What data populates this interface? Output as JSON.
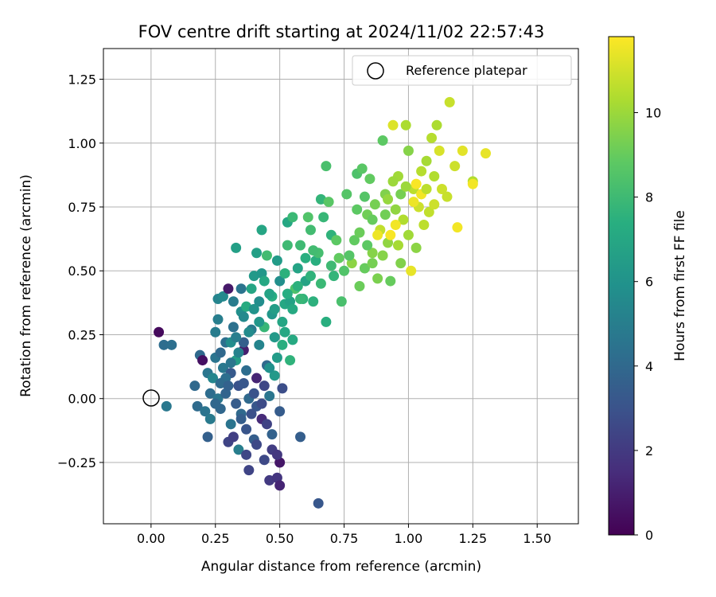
{
  "chart_data": {
    "type": "scatter",
    "title": "FOV centre drift starting at 2024/11/02 22:57:43",
    "xlabel": "Angular distance from reference (arcmin)",
    "ylabel": "Rotation from reference (arcmin)",
    "xlim": [
      -0.185,
      1.66
    ],
    "ylim": [
      -0.49,
      1.37
    ],
    "xticks": [
      "0.00",
      "0.25",
      "0.50",
      "0.75",
      "1.00",
      "1.25",
      "1.50"
    ],
    "yticks": [
      "−0.25",
      "0.00",
      "0.25",
      "0.50",
      "0.75",
      "1.00",
      "1.25"
    ],
    "grid": true,
    "legend": {
      "placement": "top-right",
      "label": "Reference platepar"
    },
    "colorbar": {
      "label": "Hours from first FF file",
      "range": [
        0,
        11.8
      ],
      "ticks": [
        "0",
        "2",
        "4",
        "6",
        "8",
        "10"
      ],
      "colormap": "viridis"
    },
    "reference_point": {
      "x": 0.0,
      "y": 0.0
    },
    "points": [
      {
        "x": 0.03,
        "y": 0.26,
        "c": 0.3
      },
      {
        "x": 0.05,
        "y": 0.21,
        "c": 4.2
      },
      {
        "x": 0.08,
        "y": 0.21,
        "c": 4.3
      },
      {
        "x": 0.06,
        "y": -0.03,
        "c": 4.7
      },
      {
        "x": 0.17,
        "y": 0.05,
        "c": 4.0
      },
      {
        "x": 0.18,
        "y": -0.03,
        "c": 4.1
      },
      {
        "x": 0.19,
        "y": 0.17,
        "c": 4.0
      },
      {
        "x": 0.2,
        "y": 0.15,
        "c": 0.5
      },
      {
        "x": 0.21,
        "y": -0.05,
        "c": 4.5
      },
      {
        "x": 0.22,
        "y": 0.1,
        "c": 4.6
      },
      {
        "x": 0.22,
        "y": -0.15,
        "c": 3.6
      },
      {
        "x": 0.23,
        "y": 0.02,
        "c": 4.2
      },
      {
        "x": 0.23,
        "y": -0.08,
        "c": 4.8
      },
      {
        "x": 0.24,
        "y": 0.08,
        "c": 5.4
      },
      {
        "x": 0.25,
        "y": 0.16,
        "c": 4.5
      },
      {
        "x": 0.25,
        "y": 0.26,
        "c": 4.9
      },
      {
        "x": 0.26,
        "y": 0.39,
        "c": 5.3
      },
      {
        "x": 0.26,
        "y": 0.31,
        "c": 5.0
      },
      {
        "x": 0.26,
        "y": 0.0,
        "c": 4.6
      },
      {
        "x": 0.27,
        "y": 0.18,
        "c": 4.0
      },
      {
        "x": 0.27,
        "y": -0.04,
        "c": 3.9
      },
      {
        "x": 0.28,
        "y": 0.12,
        "c": 4.7
      },
      {
        "x": 0.28,
        "y": 0.4,
        "c": 5.5
      },
      {
        "x": 0.29,
        "y": 0.22,
        "c": 4.3
      },
      {
        "x": 0.29,
        "y": 0.02,
        "c": 3.8
      },
      {
        "x": 0.3,
        "y": 0.43,
        "c": 0.8
      },
      {
        "x": 0.3,
        "y": -0.17,
        "c": 2.4
      },
      {
        "x": 0.31,
        "y": 0.1,
        "c": 3.3
      },
      {
        "x": 0.31,
        "y": -0.1,
        "c": 4.5
      },
      {
        "x": 0.31,
        "y": 0.22,
        "c": 5.7
      },
      {
        "x": 0.32,
        "y": 0.38,
        "c": 4.9
      },
      {
        "x": 0.32,
        "y": -0.15,
        "c": 2.2
      },
      {
        "x": 0.32,
        "y": 0.28,
        "c": 4.4
      },
      {
        "x": 0.33,
        "y": 0.59,
        "c": 6.6
      },
      {
        "x": 0.33,
        "y": 0.15,
        "c": 6.5
      },
      {
        "x": 0.34,
        "y": 0.05,
        "c": 3.0
      },
      {
        "x": 0.34,
        "y": -0.2,
        "c": 5.0
      },
      {
        "x": 0.35,
        "y": 0.43,
        "c": 4.5
      },
      {
        "x": 0.35,
        "y": 0.34,
        "c": 5.8
      },
      {
        "x": 0.35,
        "y": -0.06,
        "c": 4.0
      },
      {
        "x": 0.36,
        "y": 0.19,
        "c": 1.0
      },
      {
        "x": 0.36,
        "y": 0.22,
        "c": 3.6
      },
      {
        "x": 0.37,
        "y": -0.22,
        "c": 2.5
      },
      {
        "x": 0.37,
        "y": 0.36,
        "c": 7.2
      },
      {
        "x": 0.37,
        "y": 0.11,
        "c": 4.2
      },
      {
        "x": 0.38,
        "y": 0.0,
        "c": 4.0
      },
      {
        "x": 0.38,
        "y": -0.28,
        "c": 2.4
      },
      {
        "x": 0.39,
        "y": 0.43,
        "c": 6.9
      },
      {
        "x": 0.39,
        "y": 0.27,
        "c": 4.8
      },
      {
        "x": 0.4,
        "y": 0.48,
        "c": 6.3
      },
      {
        "x": 0.4,
        "y": -0.16,
        "c": 3.5
      },
      {
        "x": 0.41,
        "y": 0.57,
        "c": 6.6
      },
      {
        "x": 0.41,
        "y": 0.08,
        "c": 1.2
      },
      {
        "x": 0.41,
        "y": -0.03,
        "c": 3.2
      },
      {
        "x": 0.42,
        "y": 0.38,
        "c": 5.7
      },
      {
        "x": 0.42,
        "y": 0.21,
        "c": 5.3
      },
      {
        "x": 0.43,
        "y": 0.66,
        "c": 6.9
      },
      {
        "x": 0.43,
        "y": -0.08,
        "c": 1.4
      },
      {
        "x": 0.43,
        "y": 0.49,
        "c": 6.2
      },
      {
        "x": 0.44,
        "y": 0.28,
        "c": 7.8
      },
      {
        "x": 0.44,
        "y": -0.24,
        "c": 2.6
      },
      {
        "x": 0.45,
        "y": 0.13,
        "c": 4.0
      },
      {
        "x": 0.45,
        "y": 0.56,
        "c": 8.1
      },
      {
        "x": 0.46,
        "y": 0.01,
        "c": 4.6
      },
      {
        "x": 0.46,
        "y": -0.32,
        "c": 2.0
      },
      {
        "x": 0.47,
        "y": 0.33,
        "c": 6.2
      },
      {
        "x": 0.47,
        "y": 0.4,
        "c": 7.3
      },
      {
        "x": 0.47,
        "y": -0.14,
        "c": 3.7
      },
      {
        "x": 0.48,
        "y": 0.09,
        "c": 6.3
      },
      {
        "x": 0.48,
        "y": 0.24,
        "c": 6.3
      },
      {
        "x": 0.49,
        "y": -0.31,
        "c": 1.8
      },
      {
        "x": 0.49,
        "y": 0.54,
        "c": 6.4
      },
      {
        "x": 0.5,
        "y": 0.46,
        "c": 5.8
      },
      {
        "x": 0.5,
        "y": -0.05,
        "c": 3.4
      },
      {
        "x": 0.5,
        "y": -0.34,
        "c": 1.2
      },
      {
        "x": 0.5,
        "y": -0.25,
        "c": 0.7
      },
      {
        "x": 0.51,
        "y": 0.21,
        "c": 7.4
      },
      {
        "x": 0.51,
        "y": 0.04,
        "c": 2.8
      },
      {
        "x": 0.52,
        "y": 0.37,
        "c": 7.0
      },
      {
        "x": 0.52,
        "y": 0.49,
        "c": 7.5
      },
      {
        "x": 0.53,
        "y": 0.6,
        "c": 8.0
      },
      {
        "x": 0.53,
        "y": 0.69,
        "c": 7.0
      },
      {
        "x": 0.54,
        "y": 0.38,
        "c": 6.7
      },
      {
        "x": 0.54,
        "y": 0.15,
        "c": 7.6
      },
      {
        "x": 0.55,
        "y": 0.71,
        "c": 7.9
      },
      {
        "x": 0.55,
        "y": 0.23,
        "c": 7.1
      },
      {
        "x": 0.56,
        "y": 0.43,
        "c": 8.4
      },
      {
        "x": 0.57,
        "y": 0.51,
        "c": 6.8
      },
      {
        "x": 0.58,
        "y": 0.6,
        "c": 8.0
      },
      {
        "x": 0.58,
        "y": -0.15,
        "c": 3.5
      },
      {
        "x": 0.59,
        "y": 0.39,
        "c": 7.6
      },
      {
        "x": 0.6,
        "y": 0.46,
        "c": 6.8
      },
      {
        "x": 0.61,
        "y": 0.71,
        "c": 8.5
      },
      {
        "x": 0.62,
        "y": 0.66,
        "c": 8.1
      },
      {
        "x": 0.63,
        "y": 0.38,
        "c": 7.5
      },
      {
        "x": 0.64,
        "y": 0.54,
        "c": 7.4
      },
      {
        "x": 0.65,
        "y": 0.57,
        "c": 8.2
      },
      {
        "x": 0.65,
        "y": -0.41,
        "c": 3.2
      },
      {
        "x": 0.66,
        "y": 0.78,
        "c": 7.7
      },
      {
        "x": 0.67,
        "y": 0.71,
        "c": 7.8
      },
      {
        "x": 0.68,
        "y": 0.91,
        "c": 8.3
      },
      {
        "x": 0.68,
        "y": 0.3,
        "c": 7.4
      },
      {
        "x": 0.69,
        "y": 0.77,
        "c": 8.7
      },
      {
        "x": 0.7,
        "y": 0.64,
        "c": 7.6
      },
      {
        "x": 0.71,
        "y": 0.48,
        "c": 7.7
      },
      {
        "x": 0.72,
        "y": 0.62,
        "c": 8.8
      },
      {
        "x": 0.73,
        "y": 0.55,
        "c": 8.9
      },
      {
        "x": 0.74,
        "y": 0.38,
        "c": 8.3
      },
      {
        "x": 0.76,
        "y": 0.8,
        "c": 8.6
      },
      {
        "x": 0.78,
        "y": 0.53,
        "c": 9.7
      },
      {
        "x": 0.79,
        "y": 0.62,
        "c": 8.9
      },
      {
        "x": 0.8,
        "y": 0.88,
        "c": 8.4
      },
      {
        "x": 0.81,
        "y": 0.65,
        "c": 9.1
      },
      {
        "x": 0.82,
        "y": 0.9,
        "c": 8.7
      },
      {
        "x": 0.83,
        "y": 0.51,
        "c": 9.0
      },
      {
        "x": 0.84,
        "y": 0.72,
        "c": 9.2
      },
      {
        "x": 0.85,
        "y": 0.86,
        "c": 8.9
      },
      {
        "x": 0.86,
        "y": 0.57,
        "c": 9.6
      },
      {
        "x": 0.87,
        "y": 0.76,
        "c": 9.3
      },
      {
        "x": 0.88,
        "y": 0.47,
        "c": 9.4
      },
      {
        "x": 0.89,
        "y": 0.66,
        "c": 10.7
      },
      {
        "x": 0.9,
        "y": 1.01,
        "c": 8.8
      },
      {
        "x": 0.91,
        "y": 0.8,
        "c": 9.5
      },
      {
        "x": 0.92,
        "y": 0.61,
        "c": 9.8
      },
      {
        "x": 0.93,
        "y": 0.46,
        "c": 9.0
      },
      {
        "x": 0.94,
        "y": 1.07,
        "c": 11.2
      },
      {
        "x": 0.95,
        "y": 0.74,
        "c": 9.8
      },
      {
        "x": 0.96,
        "y": 0.87,
        "c": 10.1
      },
      {
        "x": 0.97,
        "y": 0.53,
        "c": 9.5
      },
      {
        "x": 0.98,
        "y": 0.7,
        "c": 10.4
      },
      {
        "x": 0.99,
        "y": 1.07,
        "c": 10.3
      },
      {
        "x": 1.0,
        "y": 0.97,
        "c": 9.6
      },
      {
        "x": 1.01,
        "y": 0.5,
        "c": 11.4
      },
      {
        "x": 1.02,
        "y": 0.82,
        "c": 10.6
      },
      {
        "x": 1.03,
        "y": 0.59,
        "c": 9.7
      },
      {
        "x": 1.04,
        "y": 0.75,
        "c": 10.9
      },
      {
        "x": 1.05,
        "y": 0.89,
        "c": 10.5
      },
      {
        "x": 1.06,
        "y": 0.68,
        "c": 10.6
      },
      {
        "x": 1.07,
        "y": 0.93,
        "c": 10.2
      },
      {
        "x": 1.08,
        "y": 0.73,
        "c": 10.7
      },
      {
        "x": 1.09,
        "y": 1.02,
        "c": 10.5
      },
      {
        "x": 1.1,
        "y": 0.87,
        "c": 10.4
      },
      {
        "x": 1.11,
        "y": 1.07,
        "c": 10.3
      },
      {
        "x": 1.12,
        "y": 0.97,
        "c": 11.1
      },
      {
        "x": 1.13,
        "y": 0.82,
        "c": 10.9
      },
      {
        "x": 1.15,
        "y": 0.79,
        "c": 10.8
      },
      {
        "x": 1.16,
        "y": 1.16,
        "c": 10.8
      },
      {
        "x": 1.18,
        "y": 0.91,
        "c": 10.9
      },
      {
        "x": 1.19,
        "y": 0.67,
        "c": 11.6
      },
      {
        "x": 1.21,
        "y": 0.97,
        "c": 11.3
      },
      {
        "x": 1.25,
        "y": 0.85,
        "c": 10.4
      },
      {
        "x": 1.25,
        "y": 0.84,
        "c": 11.6
      },
      {
        "x": 1.3,
        "y": 0.96,
        "c": 11.4
      },
      {
        "x": 0.93,
        "y": 0.64,
        "c": 11.7
      },
      {
        "x": 0.95,
        "y": 0.68,
        "c": 11.6
      },
      {
        "x": 0.88,
        "y": 0.64,
        "c": 11.5
      },
      {
        "x": 1.03,
        "y": 0.84,
        "c": 11.7
      },
      {
        "x": 1.05,
        "y": 0.8,
        "c": 11.6
      },
      {
        "x": 1.02,
        "y": 0.77,
        "c": 11.5
      },
      {
        "x": 0.97,
        "y": 0.8,
        "c": 9.3
      },
      {
        "x": 0.99,
        "y": 0.83,
        "c": 10.0
      },
      {
        "x": 0.91,
        "y": 0.72,
        "c": 9.2
      },
      {
        "x": 0.84,
        "y": 0.6,
        "c": 8.8
      },
      {
        "x": 0.86,
        "y": 0.7,
        "c": 9.0
      },
      {
        "x": 0.83,
        "y": 0.79,
        "c": 8.6
      },
      {
        "x": 0.92,
        "y": 0.78,
        "c": 9.9
      },
      {
        "x": 0.96,
        "y": 0.6,
        "c": 10.2
      },
      {
        "x": 0.81,
        "y": 0.44,
        "c": 9.1
      },
      {
        "x": 0.75,
        "y": 0.5,
        "c": 8.5
      },
      {
        "x": 0.77,
        "y": 0.56,
        "c": 8.6
      },
      {
        "x": 0.7,
        "y": 0.52,
        "c": 8.0
      },
      {
        "x": 0.66,
        "y": 0.45,
        "c": 7.9
      },
      {
        "x": 0.62,
        "y": 0.48,
        "c": 7.6
      },
      {
        "x": 0.6,
        "y": 0.55,
        "c": 7.4
      },
      {
        "x": 0.57,
        "y": 0.44,
        "c": 7.5
      },
      {
        "x": 0.55,
        "y": 0.35,
        "c": 7.1
      },
      {
        "x": 0.53,
        "y": 0.41,
        "c": 7.3
      },
      {
        "x": 0.51,
        "y": 0.3,
        "c": 6.9
      },
      {
        "x": 0.48,
        "y": 0.35,
        "c": 6.5
      },
      {
        "x": 0.46,
        "y": 0.41,
        "c": 6.8
      },
      {
        "x": 0.44,
        "y": 0.46,
        "c": 7.0
      },
      {
        "x": 0.42,
        "y": 0.3,
        "c": 6.2
      },
      {
        "x": 0.4,
        "y": 0.35,
        "c": 6.0
      },
      {
        "x": 0.38,
        "y": 0.26,
        "c": 5.6
      },
      {
        "x": 0.36,
        "y": 0.32,
        "c": 5.5
      },
      {
        "x": 0.34,
        "y": 0.18,
        "c": 5.2
      },
      {
        "x": 0.33,
        "y": 0.24,
        "c": 5.0
      },
      {
        "x": 0.31,
        "y": 0.14,
        "c": 4.6
      },
      {
        "x": 0.29,
        "y": 0.08,
        "c": 4.3
      },
      {
        "x": 0.27,
        "y": 0.06,
        "c": 4.1
      },
      {
        "x": 0.25,
        "y": -0.02,
        "c": 3.9
      },
      {
        "x": 0.35,
        "y": -0.08,
        "c": 3.5
      },
      {
        "x": 0.37,
        "y": -0.12,
        "c": 3.1
      },
      {
        "x": 0.39,
        "y": -0.06,
        "c": 2.9
      },
      {
        "x": 0.41,
        "y": -0.18,
        "c": 2.6
      },
      {
        "x": 0.43,
        "y": -0.02,
        "c": 2.7
      },
      {
        "x": 0.45,
        "y": -0.1,
        "c": 2.3
      },
      {
        "x": 0.47,
        "y": -0.2,
        "c": 2.1
      },
      {
        "x": 0.49,
        "y": -0.22,
        "c": 1.9
      },
      {
        "x": 0.44,
        "y": 0.05,
        "c": 2.5
      },
      {
        "x": 0.4,
        "y": 0.02,
        "c": 3.0
      },
      {
        "x": 0.36,
        "y": 0.06,
        "c": 3.2
      },
      {
        "x": 0.33,
        "y": -0.02,
        "c": 3.4
      },
      {
        "x": 0.3,
        "y": 0.05,
        "c": 3.7
      },
      {
        "x": 0.46,
        "y": 0.12,
        "c": 5.9
      },
      {
        "x": 0.49,
        "y": 0.16,
        "c": 6.4
      },
      {
        "x": 0.52,
        "y": 0.26,
        "c": 7.0
      },
      {
        "x": 0.58,
        "y": 0.39,
        "c": 7.8
      },
      {
        "x": 0.63,
        "y": 0.58,
        "c": 8.1
      },
      {
        "x": 0.8,
        "y": 0.74,
        "c": 8.8
      },
      {
        "x": 0.86,
        "y": 0.53,
        "c": 9.3
      },
      {
        "x": 0.9,
        "y": 0.56,
        "c": 9.6
      },
      {
        "x": 1.0,
        "y": 0.64,
        "c": 10.1
      },
      {
        "x": 1.07,
        "y": 0.82,
        "c": 10.6
      },
      {
        "x": 1.1,
        "y": 0.76,
        "c": 10.9
      },
      {
        "x": 0.94,
        "y": 0.85,
        "c": 10.0
      }
    ]
  }
}
